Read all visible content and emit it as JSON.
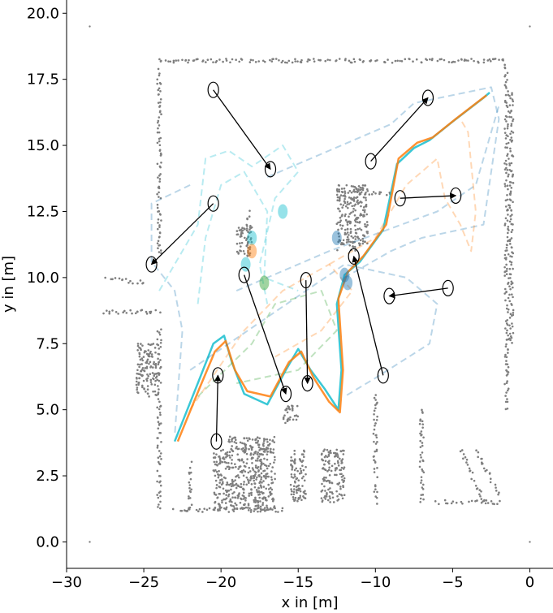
{
  "chart_data": {
    "type": "scatter",
    "title": "",
    "xlabel": "x in [m]",
    "ylabel": "y in [m]",
    "xlim": [
      -30,
      1.5
    ],
    "ylim": [
      -1,
      20.5
    ],
    "grid": false,
    "x_ticks": [
      -30,
      -25,
      -20,
      -15,
      -10,
      -5,
      0
    ],
    "x_tick_labels": [
      "−30",
      "−25",
      "−20",
      "−15",
      "−10",
      "−5",
      "0"
    ],
    "y_ticks": [
      0,
      2.5,
      5,
      7.5,
      10,
      12.5,
      15,
      17.5,
      20
    ],
    "y_tick_labels": [
      "0.0",
      "2.5",
      "5.0",
      "7.5",
      "10.0",
      "12.5",
      "15.0",
      "17.5",
      "20.0"
    ],
    "colors": {
      "points": "#7f7f7f",
      "blue": "#1f77b4",
      "orange": "#ff7f0e",
      "green": "#2ca02c",
      "cyan": "#17becf",
      "arrows": "#000000"
    },
    "map_corner_points": [
      [
        -28.5,
        19.5
      ],
      [
        0,
        19.5
      ],
      [
        -28.5,
        0
      ],
      [
        0,
        0
      ]
    ],
    "map_wall_segments": [
      {
        "from": [
          -24.0,
          18.2
        ],
        "to": [
          -1.5,
          18.2
        ]
      },
      {
        "from": [
          -24.0,
          18.2
        ],
        "to": [
          -24.0,
          10.8
        ]
      },
      {
        "from": [
          -27.5,
          10.0
        ],
        "to": [
          -25.0,
          9.8
        ]
      },
      {
        "from": [
          -27.5,
          8.7
        ],
        "to": [
          -24.0,
          8.7
        ]
      },
      {
        "from": [
          -24.0,
          8.0
        ],
        "to": [
          -24.0,
          1.2
        ]
      },
      {
        "from": [
          -23.0,
          1.2
        ],
        "to": [
          -16.0,
          1.2
        ]
      },
      {
        "from": [
          -22.0,
          3.0
        ],
        "to": [
          -22.0,
          1.2
        ]
      },
      {
        "from": [
          -10.0,
          5.5
        ],
        "to": [
          -10.0,
          1.5
        ]
      },
      {
        "from": [
          -7.0,
          5.0
        ],
        "to": [
          -7.0,
          1.5
        ]
      },
      {
        "from": [
          -6.0,
          1.5
        ],
        "to": [
          -2.0,
          1.5
        ]
      },
      {
        "from": [
          -1.5,
          18.0
        ],
        "to": [
          -1.5,
          5.0
        ]
      },
      {
        "from": [
          -1.2,
          17.0
        ],
        "to": [
          -1.2,
          7.5
        ]
      },
      {
        "from": [
          -12.0,
          13.2
        ],
        "to": [
          -9.0,
          13.2
        ]
      },
      {
        "from": [
          -18.2,
          12.5
        ],
        "to": [
          -18.2,
          10.8
        ]
      },
      {
        "from": [
          -17.5,
          3.5
        ],
        "to": [
          -17.5,
          1.2
        ]
      },
      {
        "from": [
          -3.5,
          3.5
        ],
        "to": [
          -2.0,
          1.8
        ]
      },
      {
        "from": [
          -4.5,
          3.5
        ],
        "to": [
          -3.0,
          1.5
        ]
      }
    ],
    "map_blocks": [
      {
        "x": [
          -19.5,
          -16.5
        ],
        "y": [
          1.2,
          4.0
        ]
      },
      {
        "x": [
          -12.5,
          -10.5
        ],
        "y": [
          11.0,
          13.5
        ]
      },
      {
        "x": [
          -25.5,
          -24.0
        ],
        "y": [
          5.5,
          7.5
        ]
      },
      {
        "x": [
          -20.5,
          -19.5
        ],
        "y": [
          1.2,
          3.5
        ]
      },
      {
        "x": [
          -15.5,
          -14.5
        ],
        "y": [
          1.5,
          3.5
        ]
      },
      {
        "x": [
          -13.5,
          -12.0
        ],
        "y": [
          1.5,
          3.5
        ]
      },
      {
        "x": [
          -16.0,
          -15.0
        ],
        "y": [
          4.5,
          5.2
        ]
      },
      {
        "x": [
          -19.0,
          -18.0
        ],
        "y": [
          10.8,
          12.0
        ]
      }
    ],
    "series": [
      {
        "color": "cyan",
        "values": [
          [
            -23.0,
            3.8
          ],
          [
            -21.5,
            6.0
          ],
          [
            -20.5,
            7.5
          ],
          [
            -19.8,
            7.8
          ],
          [
            -19.3,
            6.8
          ],
          [
            -18.5,
            5.6
          ],
          [
            -17.0,
            5.2
          ],
          [
            -15.8,
            6.5
          ],
          [
            -15.0,
            7.3
          ],
          [
            -14.2,
            6.5
          ],
          [
            -13.3,
            5.8
          ],
          [
            -12.4,
            5.0
          ],
          [
            -12.2,
            6.5
          ],
          [
            -12.5,
            9.0
          ],
          [
            -12.0,
            10.1
          ],
          [
            -11.0,
            10.6
          ],
          [
            -9.5,
            11.8
          ],
          [
            -8.6,
            14.3
          ],
          [
            -7.5,
            14.9
          ],
          [
            -6.5,
            15.2
          ],
          [
            -5.0,
            15.9
          ],
          [
            -3.0,
            16.8
          ],
          [
            -2.6,
            17.0
          ]
        ]
      },
      {
        "color": "orange",
        "values": [
          [
            -22.8,
            3.8
          ],
          [
            -21.4,
            5.8
          ],
          [
            -20.4,
            7.2
          ],
          [
            -19.7,
            7.6
          ],
          [
            -19.1,
            6.5
          ],
          [
            -18.3,
            5.7
          ],
          [
            -16.8,
            5.5
          ],
          [
            -15.6,
            6.8
          ],
          [
            -14.8,
            7.2
          ],
          [
            -14.0,
            6.2
          ],
          [
            -13.0,
            5.3
          ],
          [
            -12.3,
            4.9
          ],
          [
            -12.1,
            6.5
          ],
          [
            -12.4,
            9.2
          ],
          [
            -11.8,
            10.2
          ],
          [
            -10.8,
            10.8
          ],
          [
            -9.3,
            12.0
          ],
          [
            -8.5,
            14.5
          ],
          [
            -7.3,
            15.1
          ],
          [
            -6.3,
            15.3
          ],
          [
            -4.8,
            16.0
          ],
          [
            -2.8,
            16.9
          ]
        ]
      },
      {
        "color": "blue",
        "dashed": true,
        "values": [
          [
            -17.0,
            13.8
          ],
          [
            -9.0,
            15.8
          ],
          [
            -7.5,
            16.6
          ],
          [
            -2.5,
            17.2
          ],
          [
            -2.0,
            16.0
          ],
          [
            -3.0,
            12.0
          ],
          [
            -7.0,
            11.5
          ],
          [
            -9.0,
            11.0
          ],
          [
            -12.0,
            10.0
          ]
        ]
      },
      {
        "color": "blue",
        "dashed": true,
        "values": [
          [
            -22.0,
            13.5
          ],
          [
            -24.5,
            12.8
          ],
          [
            -24.5,
            10.6
          ],
          [
            -23.0,
            9.5
          ],
          [
            -22.5,
            8.0
          ],
          [
            -23.0,
            4.0
          ]
        ]
      },
      {
        "color": "blue",
        "dashed": true,
        "values": [
          [
            -22.0,
            6.5
          ],
          [
            -12.0,
            10.5
          ],
          [
            -8.0,
            10.0
          ],
          [
            -6.0,
            9.0
          ],
          [
            -6.5,
            7.5
          ],
          [
            -10.0,
            6.2
          ],
          [
            -12.0,
            5.5
          ]
        ]
      },
      {
        "color": "blue",
        "dashed": true,
        "values": [
          [
            -19.0,
            9.5
          ],
          [
            -13.0,
            11.0
          ],
          [
            -6.0,
            12.5
          ],
          [
            -3.5,
            13.5
          ],
          [
            -2.0,
            16.5
          ]
        ]
      },
      {
        "color": "cyan",
        "dashed": true,
        "values": [
          [
            -24.0,
            9.5
          ],
          [
            -21.5,
            12.0
          ],
          [
            -21.0,
            14.5
          ],
          [
            -19.5,
            14.8
          ],
          [
            -18.0,
            14.2
          ],
          [
            -16.0,
            15.0
          ],
          [
            -15.0,
            14.0
          ],
          [
            -16.5,
            13.0
          ],
          [
            -17.5,
            10.5
          ],
          [
            -17.0,
            9.0
          ]
        ]
      },
      {
        "color": "cyan",
        "dashed": true,
        "values": [
          [
            -21.5,
            9.0
          ],
          [
            -21.0,
            11.5
          ],
          [
            -20.0,
            13.5
          ],
          [
            -18.5,
            14.0
          ],
          [
            -17.0,
            12.5
          ],
          [
            -17.2,
            10.0
          ],
          [
            -15.0,
            9.5
          ]
        ]
      },
      {
        "color": "orange",
        "dashed": true,
        "values": [
          [
            -13.0,
            10.5
          ],
          [
            -10.0,
            11.5
          ],
          [
            -8.0,
            13.5
          ],
          [
            -6.0,
            14.5
          ],
          [
            -5.5,
            13.0
          ],
          [
            -4.5,
            12.0
          ],
          [
            -3.8,
            11.0
          ],
          [
            -3.5,
            12.5
          ],
          [
            -4.0,
            15.5
          ],
          [
            -4.5,
            16.0
          ]
        ]
      },
      {
        "color": "green",
        "dashed": true,
        "values": [
          [
            -21.5,
            5.5
          ],
          [
            -18.0,
            7.5
          ],
          [
            -16.5,
            9.0
          ],
          [
            -13.5,
            9.5
          ],
          [
            -12.5,
            8.0
          ],
          [
            -15.0,
            6.5
          ],
          [
            -19.0,
            6.0
          ]
        ]
      },
      {
        "color": "orange",
        "dashed": true,
        "values": [
          [
            -22.0,
            5.0
          ],
          [
            -18.5,
            8.0
          ],
          [
            -16.0,
            9.5
          ],
          [
            -13.0,
            10.5
          ],
          [
            -11.5,
            9.5
          ],
          [
            -13.5,
            8.0
          ],
          [
            -16.5,
            7.0
          ]
        ]
      }
    ],
    "ellipses": [
      {
        "color": "cyan",
        "x": -16.0,
        "y": 12.5
      },
      {
        "color": "cyan",
        "x": -18.0,
        "y": 11.5
      },
      {
        "color": "orange",
        "x": -18.0,
        "y": 11.0
      },
      {
        "color": "cyan",
        "x": -18.4,
        "y": 10.5
      },
      {
        "color": "green",
        "x": -17.2,
        "y": 9.8
      },
      {
        "color": "blue",
        "x": -12.5,
        "y": 11.5
      },
      {
        "color": "blue",
        "x": -12.0,
        "y": 10.1
      },
      {
        "color": "blue",
        "x": -11.8,
        "y": 9.8
      }
    ],
    "arrows": [
      {
        "from": [
          -20.5,
          17.1
        ],
        "to": [
          -16.8,
          14.1
        ]
      },
      {
        "from": [
          -20.5,
          12.8
        ],
        "to": [
          -24.5,
          10.5
        ]
      },
      {
        "from": [
          -18.5,
          10.1
        ],
        "to": [
          -15.8,
          5.6
        ]
      },
      {
        "from": [
          -14.5,
          9.9
        ],
        "to": [
          -14.4,
          6.0
        ]
      },
      {
        "from": [
          -20.3,
          3.8
        ],
        "to": [
          -20.2,
          6.3
        ]
      },
      {
        "from": [
          -9.5,
          6.3
        ],
        "to": [
          -11.4,
          10.8
        ]
      },
      {
        "from": [
          -5.3,
          9.6
        ],
        "to": [
          -9.1,
          9.3
        ]
      },
      {
        "from": [
          -8.4,
          13.0
        ],
        "to": [
          -4.8,
          13.1
        ]
      },
      {
        "from": [
          -10.3,
          14.4
        ],
        "to": [
          -6.6,
          16.8
        ]
      }
    ]
  }
}
